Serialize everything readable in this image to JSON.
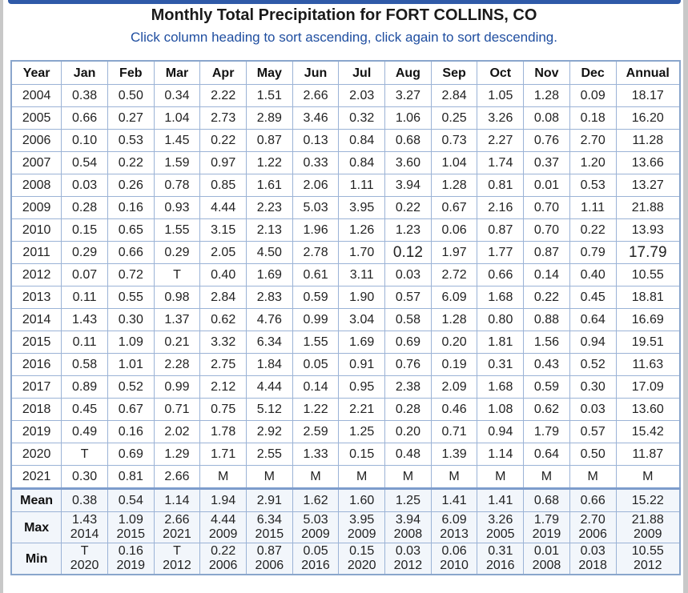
{
  "title": "Monthly Total Precipitation for FORT COLLINS, CO",
  "subtitle": "Click column heading to sort ascending, click again to sort descending.",
  "columns": [
    "Year",
    "Jan",
    "Feb",
    "Mar",
    "Apr",
    "May",
    "Jun",
    "Jul",
    "Aug",
    "Sep",
    "Oct",
    "Nov",
    "Dec",
    "Annual"
  ],
  "rows": [
    [
      "2004",
      "0.38",
      "0.50",
      "0.34",
      "2.22",
      "1.51",
      "2.66",
      "2.03",
      "3.27",
      "2.84",
      "1.05",
      "1.28",
      "0.09",
      "18.17"
    ],
    [
      "2005",
      "0.66",
      "0.27",
      "1.04",
      "2.73",
      "2.89",
      "3.46",
      "0.32",
      "1.06",
      "0.25",
      "3.26",
      "0.08",
      "0.18",
      "16.20"
    ],
    [
      "2006",
      "0.10",
      "0.53",
      "1.45",
      "0.22",
      "0.87",
      "0.13",
      "0.84",
      "0.68",
      "0.73",
      "2.27",
      "0.76",
      "2.70",
      "11.28"
    ],
    [
      "2007",
      "0.54",
      "0.22",
      "1.59",
      "0.97",
      "1.22",
      "0.33",
      "0.84",
      "3.60",
      "1.04",
      "1.74",
      "0.37",
      "1.20",
      "13.66"
    ],
    [
      "2008",
      "0.03",
      "0.26",
      "0.78",
      "0.85",
      "1.61",
      "2.06",
      "1.11",
      "3.94",
      "1.28",
      "0.81",
      "0.01",
      "0.53",
      "13.27"
    ],
    [
      "2009",
      "0.28",
      "0.16",
      "0.93",
      "4.44",
      "2.23",
      "5.03",
      "3.95",
      "0.22",
      "0.67",
      "2.16",
      "0.70",
      "1.11",
      "21.88"
    ],
    [
      "2010",
      "0.15",
      "0.65",
      "1.55",
      "3.15",
      "2.13",
      "1.96",
      "1.26",
      "1.23",
      "0.06",
      "0.87",
      "0.70",
      "0.22",
      "13.93"
    ],
    [
      "2011",
      "0.29",
      "0.66",
      "0.29",
      "2.05",
      "4.50",
      "2.78",
      "1.70",
      "0.12",
      "1.97",
      "1.77",
      "0.87",
      "0.79",
      "17.79"
    ],
    [
      "2012",
      "0.07",
      "0.72",
      "T",
      "0.40",
      "1.69",
      "0.61",
      "3.11",
      "0.03",
      "2.72",
      "0.66",
      "0.14",
      "0.40",
      "10.55"
    ],
    [
      "2013",
      "0.11",
      "0.55",
      "0.98",
      "2.84",
      "2.83",
      "0.59",
      "1.90",
      "0.57",
      "6.09",
      "1.68",
      "0.22",
      "0.45",
      "18.81"
    ],
    [
      "2014",
      "1.43",
      "0.30",
      "1.37",
      "0.62",
      "4.76",
      "0.99",
      "3.04",
      "0.58",
      "1.28",
      "0.80",
      "0.88",
      "0.64",
      "16.69"
    ],
    [
      "2015",
      "0.11",
      "1.09",
      "0.21",
      "3.32",
      "6.34",
      "1.55",
      "1.69",
      "0.69",
      "0.20",
      "1.81",
      "1.56",
      "0.94",
      "19.51"
    ],
    [
      "2016",
      "0.58",
      "1.01",
      "2.28",
      "2.75",
      "1.84",
      "0.05",
      "0.91",
      "0.76",
      "0.19",
      "0.31",
      "0.43",
      "0.52",
      "11.63"
    ],
    [
      "2017",
      "0.89",
      "0.52",
      "0.99",
      "2.12",
      "4.44",
      "0.14",
      "0.95",
      "2.38",
      "2.09",
      "1.68",
      "0.59",
      "0.30",
      "17.09"
    ],
    [
      "2018",
      "0.45",
      "0.67",
      "0.71",
      "0.75",
      "5.12",
      "1.22",
      "2.21",
      "0.28",
      "0.46",
      "1.08",
      "0.62",
      "0.03",
      "13.60"
    ],
    [
      "2019",
      "0.49",
      "0.16",
      "2.02",
      "1.78",
      "2.92",
      "2.59",
      "1.25",
      "0.20",
      "0.71",
      "0.94",
      "1.79",
      "0.57",
      "15.42"
    ],
    [
      "2020",
      "T",
      "0.69",
      "1.29",
      "1.71",
      "2.55",
      "1.33",
      "0.15",
      "0.48",
      "1.39",
      "1.14",
      "0.64",
      "0.50",
      "11.87"
    ],
    [
      "2021",
      "0.30",
      "0.81",
      "2.66",
      "M",
      "M",
      "M",
      "M",
      "M",
      "M",
      "M",
      "M",
      "M",
      "M"
    ]
  ],
  "stats": {
    "mean_label": "Mean",
    "mean": [
      "0.38",
      "0.54",
      "1.14",
      "1.94",
      "2.91",
      "1.62",
      "1.60",
      "1.25",
      "1.41",
      "1.41",
      "0.68",
      "0.66",
      "15.22"
    ],
    "max_label": "Max",
    "max": [
      [
        "1.43",
        "2014"
      ],
      [
        "1.09",
        "2015"
      ],
      [
        "2.66",
        "2021"
      ],
      [
        "4.44",
        "2009"
      ],
      [
        "6.34",
        "2015"
      ],
      [
        "5.03",
        "2009"
      ],
      [
        "3.95",
        "2009"
      ],
      [
        "3.94",
        "2008"
      ],
      [
        "6.09",
        "2013"
      ],
      [
        "3.26",
        "2005"
      ],
      [
        "1.79",
        "2019"
      ],
      [
        "2.70",
        "2006"
      ],
      [
        "21.88",
        "2009"
      ]
    ],
    "min_label": "Min",
    "min": [
      [
        "T",
        "2020"
      ],
      [
        "0.16",
        "2019"
      ],
      [
        "T",
        "2012"
      ],
      [
        "0.22",
        "2006"
      ],
      [
        "0.87",
        "2006"
      ],
      [
        "0.05",
        "2016"
      ],
      [
        "0.15",
        "2020"
      ],
      [
        "0.03",
        "2012"
      ],
      [
        "0.06",
        "2010"
      ],
      [
        "0.31",
        "2016"
      ],
      [
        "0.01",
        "2008"
      ],
      [
        "0.03",
        "2018"
      ],
      [
        "10.55",
        "2012"
      ]
    ]
  },
  "colors": {
    "link_blue": "#1f4ea0",
    "border_blue": "#9bb3d6",
    "stats_bg": "#f2f6fb"
  }
}
